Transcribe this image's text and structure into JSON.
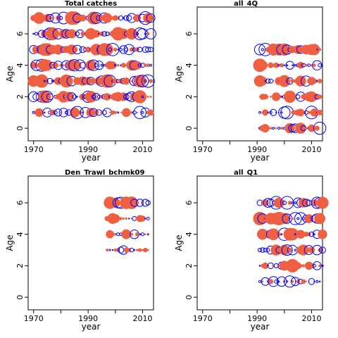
{
  "colors": {
    "positive": "#EE6041",
    "negative": "#0000FF",
    "axis": "#000000"
  },
  "chart_data": [
    {
      "type": "scatter",
      "title": "Total catches",
      "xlabel": "year",
      "ylabel": "Age",
      "xlim": [
        1968,
        2014
      ],
      "ylim": [
        -0.8,
        7.7
      ],
      "xticks": [
        1970,
        1990,
        2010
      ],
      "yticks": [
        0,
        2,
        4,
        6
      ],
      "years": [
        1970,
        2013
      ],
      "ages": [
        1,
        2,
        3,
        4,
        5,
        6,
        7
      ],
      "seed": 11
    },
    {
      "type": "scatter",
      "title": "all_4Q",
      "xlabel": "year",
      "ylabel": "Age",
      "xlim": [
        1968,
        2014
      ],
      "ylim": [
        -0.8,
        7.7
      ],
      "xticks": [
        1970,
        1990,
        2010
      ],
      "yticks": [
        0,
        2,
        4,
        6
      ],
      "years": [
        1991,
        2013
      ],
      "ages": [
        0,
        1,
        2,
        3,
        4,
        5
      ],
      "seed": 23
    },
    {
      "type": "scatter",
      "title": "Den_Trawl_bchmk09",
      "xlabel": "year",
      "ylabel": "Age",
      "xlim": [
        1968,
        2014
      ],
      "ylim": [
        -0.8,
        7.7
      ],
      "xticks": [
        1970,
        1990,
        2010
      ],
      "yticks": [
        0,
        2,
        4,
        6
      ],
      "years": [
        1997,
        2012
      ],
      "ages": [
        3,
        4,
        5,
        6
      ],
      "seed": 37
    },
    {
      "type": "scatter",
      "title": "all_Q1",
      "xlabel": "year",
      "ylabel": "Age",
      "xlim": [
        1968,
        2014
      ],
      "ylim": [
        -0.8,
        7.7
      ],
      "xticks": [
        1970,
        1990,
        2010
      ],
      "yticks": [
        0,
        2,
        4,
        6
      ],
      "years": [
        1991,
        2014
      ],
      "ages": [
        1,
        2,
        3,
        4,
        5,
        6
      ],
      "seed": 53
    }
  ]
}
